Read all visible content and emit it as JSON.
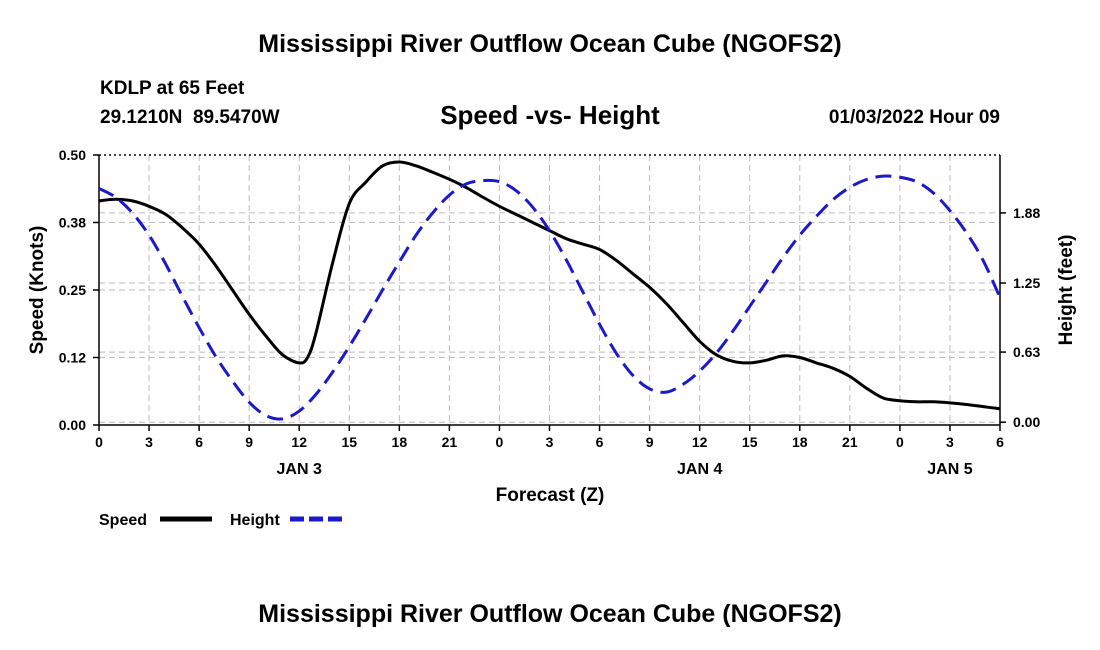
{
  "header": {
    "title": "Mississippi River Outflow Ocean Cube (NGOFS2)",
    "station": "KDLP at 65 Feet",
    "coords": "29.1210N  89.5470W",
    "chart_title": "Speed -vs- Height",
    "datetime": "01/03/2022 Hour 09"
  },
  "footer": {
    "title": "Mississippi River Outflow Ocean Cube (NGOFS2)"
  },
  "colors": {
    "speed": "#000000",
    "height": "#1a1acc",
    "grid": "#bbbbbb"
  },
  "chart_data": {
    "type": "line",
    "title": "Speed -vs- Height",
    "xlabel": "Forecast (Z)",
    "ylabel": "Speed (Knots)",
    "y2label": "Height (feet)",
    "xlim_hours": [
      0,
      54
    ],
    "ylim": [
      0,
      0.5
    ],
    "y2lim": [
      -0.025,
      2.4
    ],
    "x_ticks": [
      {
        "h": 0,
        "label": "0"
      },
      {
        "h": 3,
        "label": "3"
      },
      {
        "h": 6,
        "label": "6"
      },
      {
        "h": 9,
        "label": "9"
      },
      {
        "h": 12,
        "label": "12"
      },
      {
        "h": 15,
        "label": "15"
      },
      {
        "h": 18,
        "label": "18"
      },
      {
        "h": 21,
        "label": "21"
      },
      {
        "h": 24,
        "label": "0"
      },
      {
        "h": 27,
        "label": "3"
      },
      {
        "h": 30,
        "label": "6"
      },
      {
        "h": 33,
        "label": "9"
      },
      {
        "h": 36,
        "label": "12"
      },
      {
        "h": 39,
        "label": "15"
      },
      {
        "h": 42,
        "label": "18"
      },
      {
        "h": 45,
        "label": "21"
      },
      {
        "h": 48,
        "label": "0"
      },
      {
        "h": 51,
        "label": "3"
      },
      {
        "h": 54,
        "label": "6"
      }
    ],
    "day_labels": [
      {
        "h": 12,
        "label": "JAN 3"
      },
      {
        "h": 36,
        "label": "JAN 4"
      },
      {
        "h": 51,
        "label": "JAN 5"
      }
    ],
    "y_ticks": [
      {
        "v": 0.0,
        "label": "0.00"
      },
      {
        "v": 0.125,
        "label": "0.12"
      },
      {
        "v": 0.25,
        "label": "0.25"
      },
      {
        "v": 0.375,
        "label": "0.38"
      },
      {
        "v": 0.5,
        "label": "0.50"
      }
    ],
    "y2_ticks": [
      {
        "v": 0.0,
        "label": "0.00"
      },
      {
        "v": 0.63,
        "label": "0.63"
      },
      {
        "v": 1.25,
        "label": "1.25"
      },
      {
        "v": 1.88,
        "label": "1.88"
      }
    ],
    "series": [
      {
        "name": "Speed",
        "axis": "left",
        "style": "solid",
        "x": [
          0,
          1,
          2,
          3,
          4,
          5,
          6,
          7,
          8,
          9,
          10,
          11,
          12,
          12.5,
          13,
          14,
          15,
          16,
          17,
          18,
          19,
          20,
          21,
          22,
          23,
          24,
          25,
          26,
          27,
          28,
          29,
          30,
          31,
          32,
          33,
          34,
          35,
          36,
          37,
          38,
          39,
          40,
          41,
          42,
          43,
          44,
          45,
          46,
          47,
          48,
          49,
          50,
          51,
          52,
          53,
          54
        ],
        "values": [
          0.415,
          0.418,
          0.415,
          0.405,
          0.39,
          0.365,
          0.335,
          0.295,
          0.25,
          0.205,
          0.165,
          0.13,
          0.115,
          0.125,
          0.17,
          0.3,
          0.41,
          0.45,
          0.48,
          0.487,
          0.48,
          0.468,
          0.455,
          0.44,
          0.422,
          0.405,
          0.39,
          0.375,
          0.36,
          0.345,
          0.335,
          0.325,
          0.305,
          0.28,
          0.255,
          0.225,
          0.19,
          0.155,
          0.13,
          0.118,
          0.115,
          0.12,
          0.128,
          0.125,
          0.115,
          0.105,
          0.09,
          0.068,
          0.05,
          0.045,
          0.043,
          0.043,
          0.041,
          0.038,
          0.034,
          0.03
        ]
      },
      {
        "name": "Height",
        "axis": "right",
        "style": "dashed",
        "x": [
          0,
          1,
          2,
          3,
          4,
          5,
          6,
          7,
          8,
          9,
          10,
          11,
          12,
          13,
          14,
          15,
          16,
          17,
          18,
          19,
          20,
          21,
          22,
          23,
          24,
          25,
          26,
          27,
          28,
          29,
          30,
          31,
          32,
          33,
          34,
          35,
          36,
          37,
          38,
          39,
          40,
          41,
          42,
          43,
          44,
          45,
          46,
          47,
          48,
          49,
          50,
          51,
          52,
          53,
          54
        ],
        "values": [
          2.1,
          2.02,
          1.88,
          1.68,
          1.42,
          1.13,
          0.85,
          0.59,
          0.37,
          0.18,
          0.06,
          0.03,
          0.1,
          0.25,
          0.45,
          0.68,
          0.93,
          1.19,
          1.44,
          1.68,
          1.88,
          2.04,
          2.14,
          2.17,
          2.16,
          2.08,
          1.93,
          1.72,
          1.46,
          1.17,
          0.88,
          0.62,
          0.42,
          0.3,
          0.27,
          0.34,
          0.46,
          0.62,
          0.82,
          1.04,
          1.26,
          1.48,
          1.68,
          1.85,
          2.0,
          2.11,
          2.18,
          2.21,
          2.2,
          2.16,
          2.06,
          1.9,
          1.7,
          1.45,
          1.12
        ]
      }
    ],
    "legend": [
      {
        "name": "Speed",
        "style": "solid"
      },
      {
        "name": "Height",
        "style": "dashed"
      }
    ],
    "legend_position": "bottom-left"
  }
}
